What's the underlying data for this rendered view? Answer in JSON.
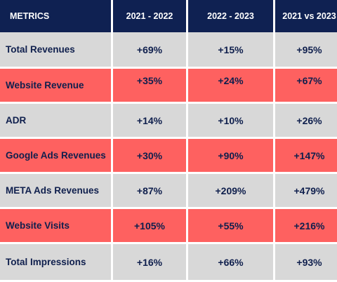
{
  "header": {
    "metrics": "METRICS",
    "col1": "2021 - 2022",
    "col2": "2022 - 2023",
    "col3": "2021 vs 2023"
  },
  "rows": [
    {
      "metric": "Total Revenues",
      "v1": "+69%",
      "v2": "+15%",
      "v3": "+95%",
      "style": "gray"
    },
    {
      "metric": "Website Revenue",
      "v1": "+35%",
      "v2": "+24%",
      "v3": "+67%",
      "style": "red"
    },
    {
      "metric": "ADR",
      "v1": "+14%",
      "v2": "+10%",
      "v3": "+26%",
      "style": "gray"
    },
    {
      "metric": "Google Ads Revenues",
      "v1": "+30%",
      "v2": "+90%",
      "v3": "+147%",
      "style": "red"
    },
    {
      "metric": "META Ads Revenues",
      "v1": "+87%",
      "v2": "+209%",
      "v3": "+479%",
      "style": "gray"
    },
    {
      "metric": "Website Visits",
      "v1": "+105%",
      "v2": "+55%",
      "v3": "+216%",
      "style": "red"
    },
    {
      "metric": "Total Impressions",
      "v1": "+16%",
      "v2": "+66%",
      "v3": "+93%",
      "style": "gray"
    }
  ],
  "colors": {
    "header_bg": "#0f2152",
    "gray_row": "#d8d8d8",
    "red_row": "#fe6160",
    "text_dark": "#0f1f4d"
  }
}
